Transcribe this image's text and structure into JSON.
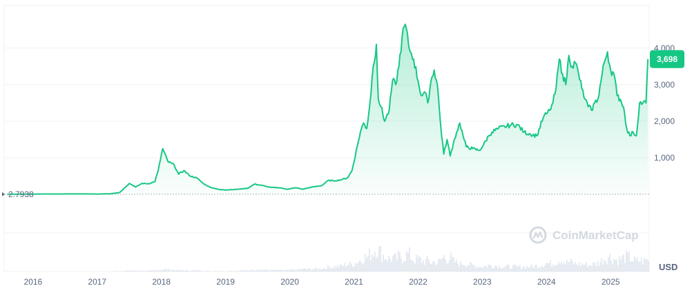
{
  "chart_data": {
    "type": "area",
    "currency": "USD",
    "x": [
      2015.6,
      2016.0,
      2016.4,
      2016.8,
      2017.0,
      2017.2,
      2017.35,
      2017.5,
      2017.6,
      2017.7,
      2017.8,
      2017.9,
      2017.95,
      2018.02,
      2018.1,
      2018.2,
      2018.27,
      2018.35,
      2018.45,
      2018.55,
      2018.65,
      2018.75,
      2018.9,
      2019.0,
      2019.2,
      2019.35,
      2019.45,
      2019.55,
      2019.7,
      2019.85,
      2019.95,
      2020.1,
      2020.2,
      2020.35,
      2020.5,
      2020.6,
      2020.7,
      2020.8,
      2020.9,
      2020.97,
      2021.05,
      2021.1,
      2021.15,
      2021.2,
      2021.25,
      2021.3,
      2021.35,
      2021.38,
      2021.42,
      2021.48,
      2021.55,
      2021.6,
      2021.65,
      2021.7,
      2021.75,
      2021.8,
      2021.85,
      2021.88,
      2021.93,
      2022.0,
      2022.05,
      2022.1,
      2022.15,
      2022.2,
      2022.25,
      2022.3,
      2022.35,
      2022.4,
      2022.45,
      2022.5,
      2022.55,
      2022.6,
      2022.65,
      2022.7,
      2022.75,
      2022.85,
      2022.95,
      2023.0,
      2023.1,
      2023.15,
      2023.25,
      2023.35,
      2023.45,
      2023.55,
      2023.65,
      2023.75,
      2023.85,
      2023.95,
      2024.0,
      2024.05,
      2024.1,
      2024.15,
      2024.2,
      2024.25,
      2024.3,
      2024.35,
      2024.4,
      2024.45,
      2024.5,
      2024.55,
      2024.6,
      2024.65,
      2024.7,
      2024.75,
      2024.8,
      2024.9,
      2024.95,
      2025.0,
      2025.05,
      2025.1,
      2025.15,
      2025.2,
      2025.25,
      2025.3,
      2025.35,
      2025.4,
      2025.45,
      2025.5,
      2025.55,
      2025.58
    ],
    "values": [
      2.79,
      8,
      10,
      12,
      8,
      15,
      50,
      300,
      200,
      300,
      290,
      350,
      650,
      1250,
      900,
      800,
      550,
      650,
      500,
      450,
      300,
      200,
      130,
      120,
      140,
      170,
      280,
      250,
      190,
      180,
      140,
      180,
      140,
      200,
      240,
      380,
      370,
      400,
      450,
      650,
      1300,
      1700,
      1950,
      1800,
      2500,
      3500,
      4100,
      2600,
      2400,
      2000,
      2300,
      3100,
      3000,
      3500,
      4300,
      4650,
      4100,
      3900,
      3700,
      3100,
      2700,
      2800,
      2500,
      3100,
      3400,
      3000,
      1900,
      1100,
      1500,
      1050,
      1400,
      1700,
      1950,
      1600,
      1300,
      1250,
      1200,
      1300,
      1600,
      1700,
      1800,
      1850,
      1900,
      1900,
      1700,
      1650,
      1600,
      2100,
      2200,
      2300,
      2500,
      2900,
      3700,
      3300,
      3000,
      3800,
      3500,
      3600,
      3300,
      2900,
      2600,
      2400,
      2300,
      2500,
      2600,
      3600,
      3900,
      3400,
      3300,
      2700,
      2600,
      2400,
      1800,
      1600,
      1700,
      1600,
      2500,
      2500,
      2500,
      3698
    ],
    "volume_profile": [
      0,
      0,
      0,
      0,
      0,
      0.01,
      0.02,
      0.04,
      0.03,
      0.03,
      0.03,
      0.04,
      0.06,
      0.09,
      0.08,
      0.07,
      0.05,
      0.05,
      0.04,
      0.04,
      0.03,
      0.02,
      0.02,
      0.02,
      0.03,
      0.05,
      0.08,
      0.07,
      0.05,
      0.06,
      0.05,
      0.08,
      0.1,
      0.1,
      0.12,
      0.18,
      0.2,
      0.22,
      0.3,
      0.28,
      0.4,
      0.45,
      0.6,
      0.55,
      0.7,
      0.8,
      1.0,
      0.85,
      0.7,
      0.6,
      0.5,
      0.55,
      0.5,
      0.6,
      0.55,
      0.65,
      0.7,
      0.6,
      0.45,
      0.5,
      0.45,
      0.4,
      0.45,
      0.35,
      0.4,
      0.35,
      0.45,
      0.6,
      0.5,
      0.55,
      0.4,
      0.35,
      0.3,
      0.35,
      0.3,
      0.25,
      0.2,
      0.2,
      0.25,
      0.25,
      0.22,
      0.2,
      0.2,
      0.18,
      0.2,
      0.2,
      0.22,
      0.3,
      0.35,
      0.3,
      0.35,
      0.4,
      0.5,
      0.45,
      0.35,
      0.4,
      0.35,
      0.3,
      0.3,
      0.3,
      0.28,
      0.25,
      0.28,
      0.3,
      0.35,
      0.5,
      0.6,
      0.55,
      0.5,
      0.45,
      0.5,
      0.55,
      0.6,
      0.55,
      0.45,
      0.4,
      0.45,
      0.4,
      0.45,
      0.5
    ],
    "xlim": [
      2015.55,
      2025.6
    ],
    "ylim": [
      0,
      4900
    ],
    "y_ticks": [
      {
        "value": 1000,
        "label": "1,000"
      },
      {
        "value": 2000,
        "label": "2,000"
      },
      {
        "value": 3000,
        "label": "3,000"
      },
      {
        "value": 4000,
        "label": "4,000"
      }
    ],
    "x_ticks": [
      {
        "value": 2016,
        "label": "2016"
      },
      {
        "value": 2017,
        "label": "2017"
      },
      {
        "value": 2018,
        "label": "2018"
      },
      {
        "value": 2019,
        "label": "2019"
      },
      {
        "value": 2020,
        "label": "2020"
      },
      {
        "value": 2021,
        "label": "2021"
      },
      {
        "value": 2022,
        "label": "2022"
      },
      {
        "value": 2023,
        "label": "2023"
      },
      {
        "value": 2024,
        "label": "2024"
      },
      {
        "value": 2025,
        "label": "2025"
      }
    ],
    "start_value_label": "2.7938",
    "current_value_label": "3,698",
    "unit_label": "USD",
    "grid": true,
    "colors": {
      "line": "#16c784",
      "baseline": "#a6b0c3",
      "grid": "#eff2f5",
      "tick_text": "#58667e",
      "volume": "#cfd6e4",
      "watermark": "#d3d9e0"
    }
  },
  "watermark": {
    "text": "CoinMarketCap",
    "icon": "coinmarketcap-logo-icon"
  }
}
